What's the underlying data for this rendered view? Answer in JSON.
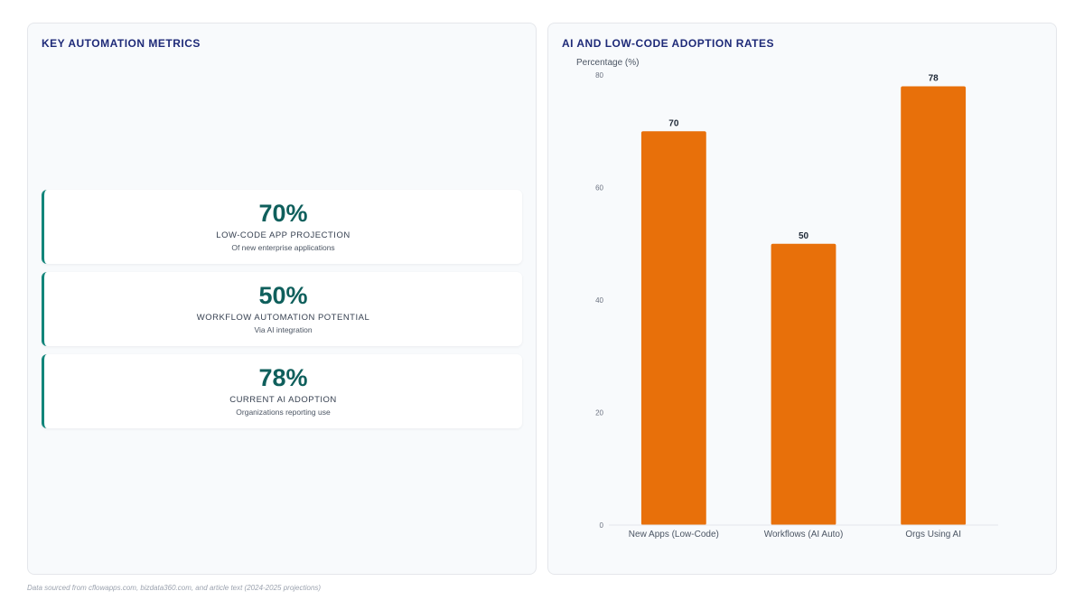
{
  "left_panel": {
    "title": "KEY AUTOMATION METRICS",
    "metrics": [
      {
        "value": "70%",
        "label": "LOW-CODE APP PROJECTION",
        "sub": "Of new enterprise applications"
      },
      {
        "value": "50%",
        "label": "WORKFLOW AUTOMATION POTENTIAL",
        "sub": "Via AI integration"
      },
      {
        "value": "78%",
        "label": "CURRENT AI ADOPTION",
        "sub": "Organizations reporting use"
      }
    ]
  },
  "right_panel": {
    "title": "AI AND LOW-CODE ADOPTION RATES"
  },
  "chart_data": {
    "type": "bar",
    "categories": [
      "New Apps (Low-Code)",
      "Workflows (AI Auto)",
      "Orgs Using AI"
    ],
    "values": [
      70,
      50,
      78
    ],
    "title": "AI AND LOW-CODE ADOPTION RATES",
    "xlabel": "",
    "ylabel": "Percentage (%)",
    "ylim": [
      0,
      80
    ],
    "yticks": [
      0,
      20,
      40,
      60,
      80
    ],
    "data_labels": true,
    "grid": false,
    "legend": "none",
    "bar_color": "#e8700a"
  },
  "footnote": "Data sourced from cflowapps.com, bizdata360.com, and article text (2024-2025 projections)",
  "colors": {
    "accent": "#12857a",
    "metric_value": "#0f5f5c",
    "title": "#1e2a78"
  }
}
